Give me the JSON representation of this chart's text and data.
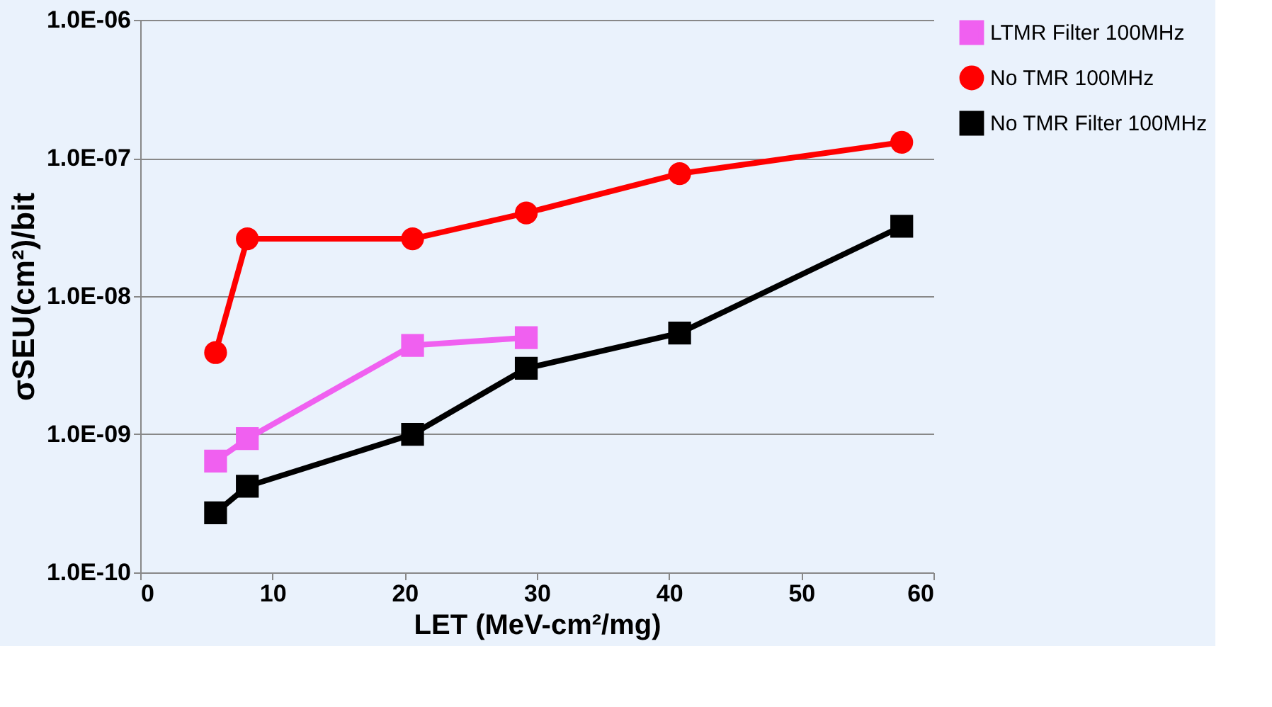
{
  "chart_data": {
    "type": "line",
    "xlabel": "LET (MeV-cm²/mg)",
    "ylabel": "σSEU(cm²)/bit",
    "log": "y",
    "xlim": [
      0,
      60
    ],
    "xticks": [
      0,
      10,
      20,
      30,
      40,
      50,
      60
    ],
    "ylim": [
      1e-10,
      1e-06
    ],
    "yticks": [
      {
        "value": 1e-10,
        "label": "1.0E-10"
      },
      {
        "value": 1e-09,
        "label": "1.0E-09"
      },
      {
        "value": 1e-08,
        "label": "1.0E-08"
      },
      {
        "value": 1e-07,
        "label": "1.0E-07"
      },
      {
        "value": 1e-06,
        "label": "1.0E-06"
      }
    ],
    "grid": "y",
    "legend": "right",
    "line_style": "solid",
    "series": [
      {
        "name": "LTMR Filter 100MHz",
        "color": "#f060f0",
        "marker": "square",
        "x": [
          5.7,
          8.1,
          20.6,
          29.2
        ],
        "values": [
          6.4e-10,
          9.3e-10,
          4.4e-09,
          5e-09
        ]
      },
      {
        "name": "No TMR 100MHz",
        "color": "#ff0000",
        "marker": "circle",
        "x": [
          5.7,
          8.1,
          20.6,
          29.2,
          40.8,
          57.6
        ],
        "values": [
          3.9e-09,
          2.6e-08,
          2.6e-08,
          4e-08,
          7.7e-08,
          1.3e-07
        ]
      },
      {
        "name": "No TMR Filter 100MHz",
        "color": "#000000",
        "marker": "square",
        "x": [
          5.7,
          8.1,
          20.6,
          29.2,
          40.8,
          57.6
        ],
        "values": [
          2.7e-10,
          4.2e-10,
          1e-09,
          3e-09,
          5.4e-09,
          3.2e-08
        ]
      }
    ]
  }
}
